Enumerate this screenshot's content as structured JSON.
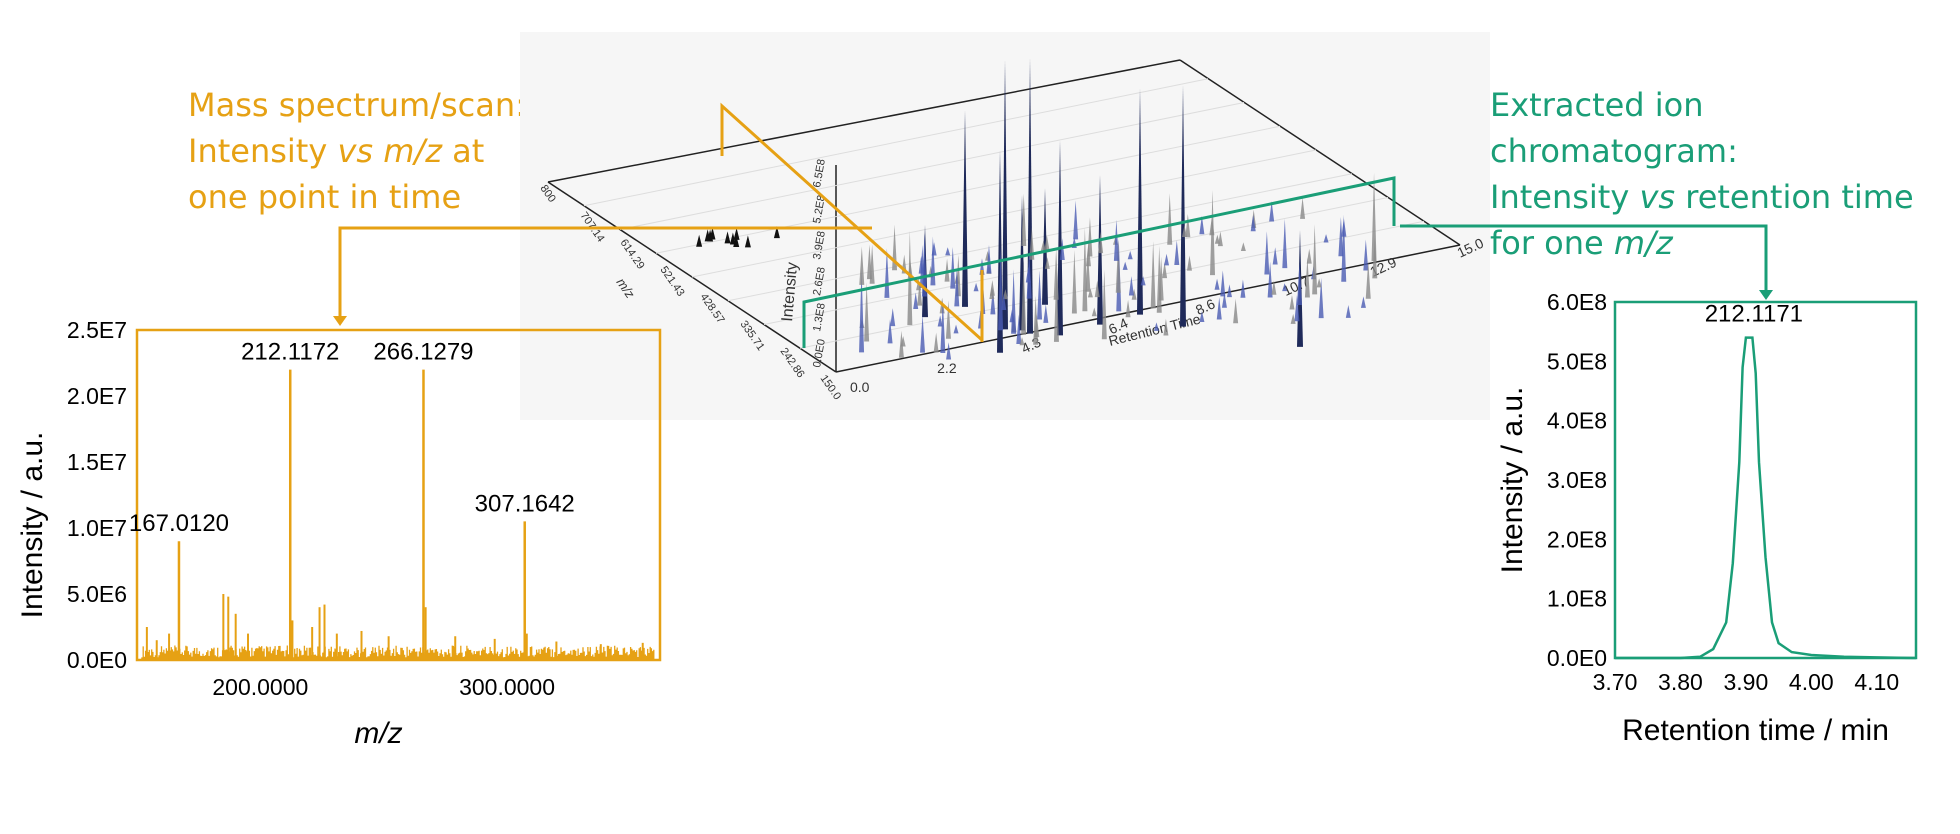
{
  "colors": {
    "orange": "#E6A114",
    "green": "#1A9E77",
    "navy": "#1F2A5A",
    "blue": "#4A5BB3",
    "panel": "#F6F6F6"
  },
  "captions": {
    "left": {
      "line1": "Mass spectrum/scan:",
      "line2_pre": "Intensity ",
      "line2_em": "vs",
      "line2_mid": " ",
      "line2_em2": "m/z",
      "line2_post": " at",
      "line3": "one point in time"
    },
    "right": {
      "line1": "Extracted ion chromatogram:",
      "line2_pre": "Intensity ",
      "line2_em": "vs",
      "line2_post": " retention time",
      "line3_pre": "for one ",
      "line3_em": "m/z"
    }
  },
  "surface3d": {
    "mz_ticks": [
      "800",
      "707.14",
      "614.29",
      "521.43",
      "428.57",
      "335.71",
      "242.86",
      "150.0"
    ],
    "mz_label": "m/z",
    "intensity_ticks": [
      "6.5E8",
      "5.2E8",
      "3.9E8",
      "2.6E8",
      "1.3E8",
      "0.0E0"
    ],
    "intensity_label": "Intensity",
    "rt_ticks": [
      "0.0",
      "2.2",
      "4.3",
      "6.4",
      "8.6",
      "10.7",
      "12.9",
      "15.0"
    ],
    "rt_label": "Retention Time"
  },
  "chart_data": [
    {
      "type": "line",
      "title": "",
      "xlabel": "m/z",
      "ylabel": "Intensity / a.u.",
      "x_ticks": [
        "200.0000",
        "300.0000"
      ],
      "y_ticks": [
        "0.0E0",
        "5.0E6",
        "1.0E7",
        "1.5E7",
        "2.0E7",
        "2.5E7"
      ],
      "xlim": [
        150,
        362
      ],
      "ylim": [
        0,
        25000000
      ],
      "peaks": [
        {
          "x": 167.012,
          "y": 9000000,
          "label": "167.0120"
        },
        {
          "x": 212.1172,
          "y": 22000000,
          "label": "212.1172"
        },
        {
          "x": 266.1279,
          "y": 22000000,
          "label": "266.1279"
        },
        {
          "x": 307.1642,
          "y": 10500000,
          "label": "307.1642"
        }
      ],
      "minor_peaks": [
        {
          "x": 154,
          "y": 2500000
        },
        {
          "x": 158,
          "y": 1500000
        },
        {
          "x": 163,
          "y": 2000000
        },
        {
          "x": 185,
          "y": 5000000
        },
        {
          "x": 187,
          "y": 4800000
        },
        {
          "x": 190,
          "y": 3500000
        },
        {
          "x": 195,
          "y": 2000000
        },
        {
          "x": 213,
          "y": 3000000
        },
        {
          "x": 221,
          "y": 2500000
        },
        {
          "x": 224,
          "y": 4000000
        },
        {
          "x": 226,
          "y": 4200000
        },
        {
          "x": 231,
          "y": 2000000
        },
        {
          "x": 241,
          "y": 2200000
        },
        {
          "x": 252,
          "y": 1800000
        },
        {
          "x": 267,
          "y": 4000000
        },
        {
          "x": 279,
          "y": 1800000
        },
        {
          "x": 295,
          "y": 1600000
        },
        {
          "x": 308,
          "y": 2000000
        },
        {
          "x": 320,
          "y": 1400000
        },
        {
          "x": 338,
          "y": 1200000
        },
        {
          "x": 355,
          "y": 1300000
        }
      ]
    },
    {
      "type": "line",
      "title": "",
      "xlabel": "Retention time / min",
      "ylabel": "Intensity / a.u.",
      "x_ticks": [
        "3.70",
        "3.80",
        "3.90",
        "4.00",
        "4.10"
      ],
      "y_ticks": [
        "0.0E0",
        "1.0E8",
        "2.0E8",
        "3.0E8",
        "4.0E8",
        "5.0E8",
        "6.0E8"
      ],
      "xlim": [
        3.7,
        4.16
      ],
      "ylim": [
        0,
        600000000
      ],
      "peak_label": "212.1171",
      "series": [
        {
          "x": [
            3.7,
            3.8,
            3.83,
            3.85,
            3.87,
            3.88,
            3.89,
            3.895,
            3.9,
            3.91,
            3.915,
            3.92,
            3.93,
            3.94,
            3.95,
            3.97,
            4.0,
            4.05,
            4.1,
            4.16
          ],
          "y": [
            0,
            0,
            2000000,
            15000000,
            60000000,
            160000000,
            330000000,
            490000000,
            540000000,
            540000000,
            480000000,
            330000000,
            170000000,
            60000000,
            25000000,
            10000000,
            5000000,
            2000000,
            1000000,
            0
          ]
        }
      ]
    }
  ]
}
